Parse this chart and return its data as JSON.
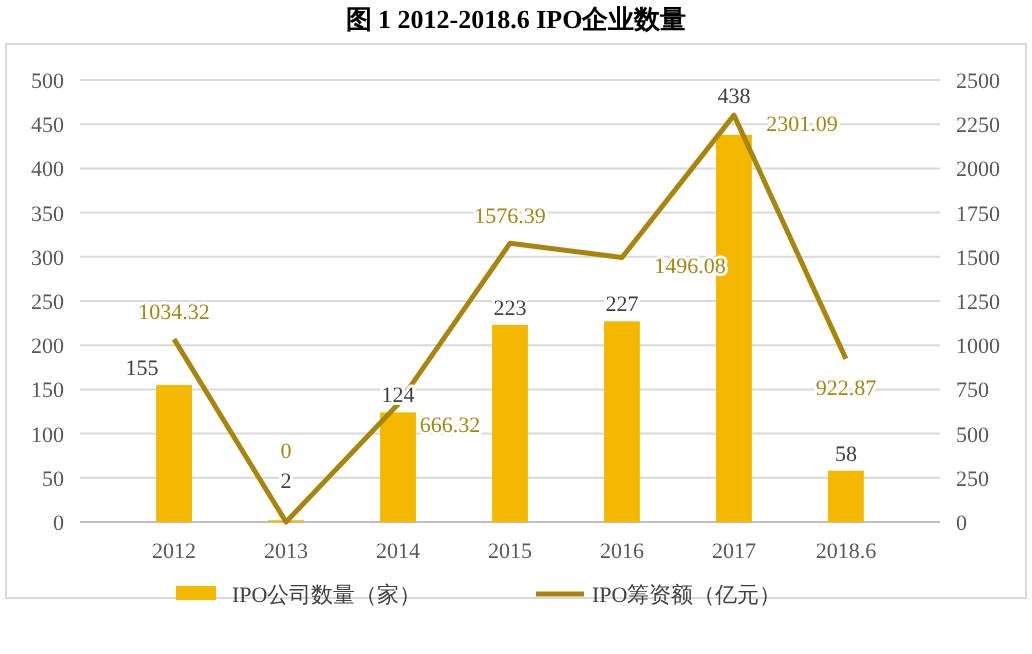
{
  "chart_data": {
    "type": "bar",
    "title": "图 1    2012-2018.6 IPO企业数量",
    "categories": [
      "2012",
      "2013",
      "2014",
      "2015",
      "2016",
      "2017",
      "2018.6"
    ],
    "series": [
      {
        "name": "IPO公司数量（家）",
        "color": "#f5b800",
        "values": [
          155,
          2,
          124,
          223,
          227,
          438,
          58
        ]
      },
      {
        "name": "IPO筹资额（亿元）",
        "type": "line",
        "axis": "y2",
        "color": "#a8860e",
        "values": [
          1034.32,
          0,
          666.32,
          1576.39,
          1496.08,
          2301.09,
          922.87
        ]
      }
    ],
    "ylim": [
      0,
      500
    ],
    "yticks": [
      0,
      50,
      100,
      150,
      200,
      250,
      300,
      350,
      400,
      450,
      500
    ],
    "y2lim": [
      0,
      2500
    ],
    "y2ticks": [
      0,
      250,
      500,
      750,
      1000,
      1250,
      1500,
      1750,
      2000,
      2250,
      2500
    ],
    "grid": "y",
    "legend": "bottom",
    "data_labels": true
  }
}
